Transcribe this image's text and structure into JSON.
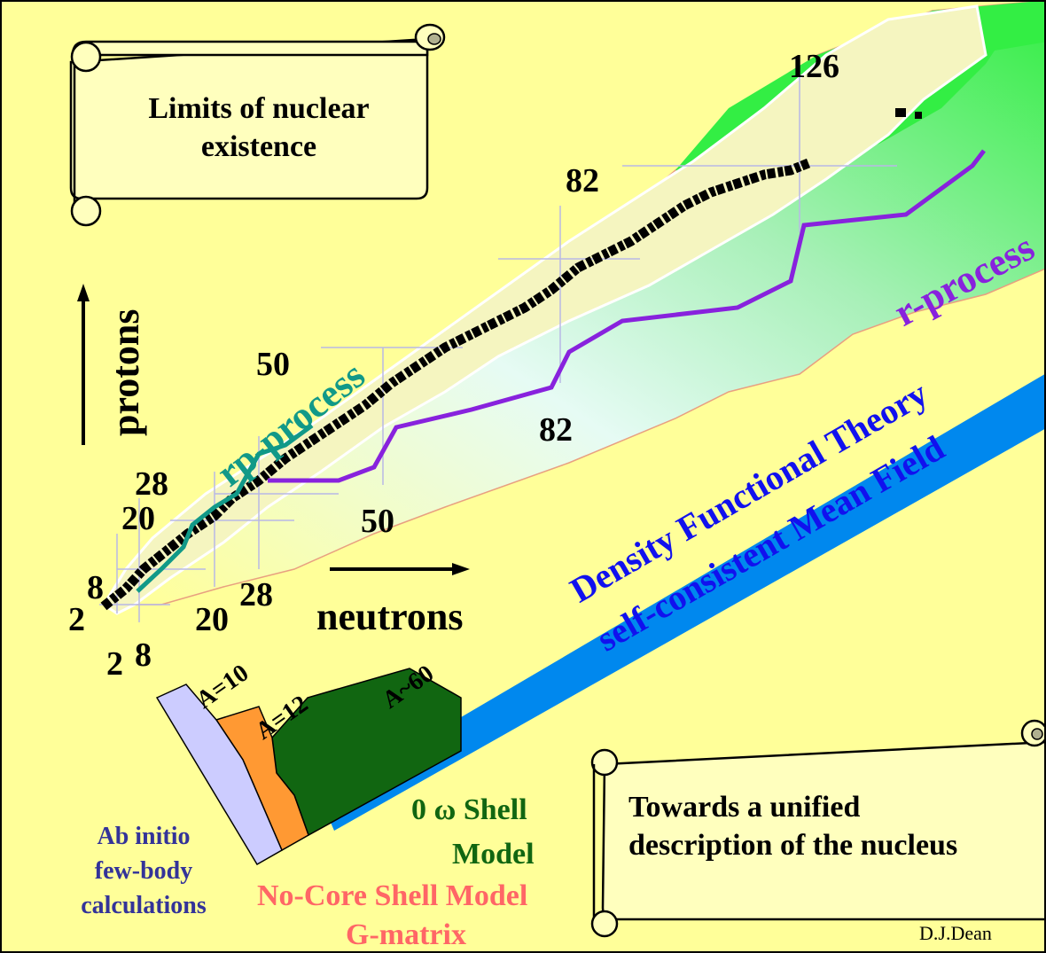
{
  "scroll_top": {
    "line1": "Limits of nuclear",
    "line2": "existence"
  },
  "scroll_bottom": {
    "line1": "Towards a unified",
    "line2": "description of the nucleus"
  },
  "axis": {
    "protons": "protons",
    "neutrons": "neutrons"
  },
  "magic_protons": {
    "p2": "2",
    "p8": "8",
    "p20": "20",
    "p28": "28",
    "p50": "50",
    "p82": "82"
  },
  "magic_neutrons": {
    "n2": "2",
    "n8": "8",
    "n20": "20",
    "n28": "28",
    "n50": "50",
    "n82": "82",
    "n126": "126"
  },
  "processes": {
    "rp": "rp-process",
    "r": "r-process"
  },
  "dft": {
    "line1": "Density Functional Theory",
    "line2": "self-consistent Mean Field"
  },
  "regions": {
    "a10": "A=10",
    "a12": "A=12",
    "a60": "A~60"
  },
  "methods": {
    "shell_model_line1": "0  ω Shell",
    "shell_model_line2": "Model",
    "ab_initio_line1": "Ab initio",
    "ab_initio_line2": "few-body",
    "ab_initio_line3": "calculations",
    "ncsm_line1": "No-Core Shell Model",
    "ncsm_line2": "G-matrix"
  },
  "credit": "D.J.Dean",
  "colors": {
    "background": "#ffff99",
    "drip_green": "#33ee44",
    "known_band": "#f2f2b4",
    "rp_process": "#119988",
    "r_process": "#8822dd",
    "dft_band": "#0088ee",
    "dft_text": "#1111ee",
    "ab_initio": "#ccccff",
    "ncsm": "#ff9933",
    "shell_model": "#116611",
    "ab_initio_text": "#333399",
    "ncsm_text": "#ff6666"
  }
}
